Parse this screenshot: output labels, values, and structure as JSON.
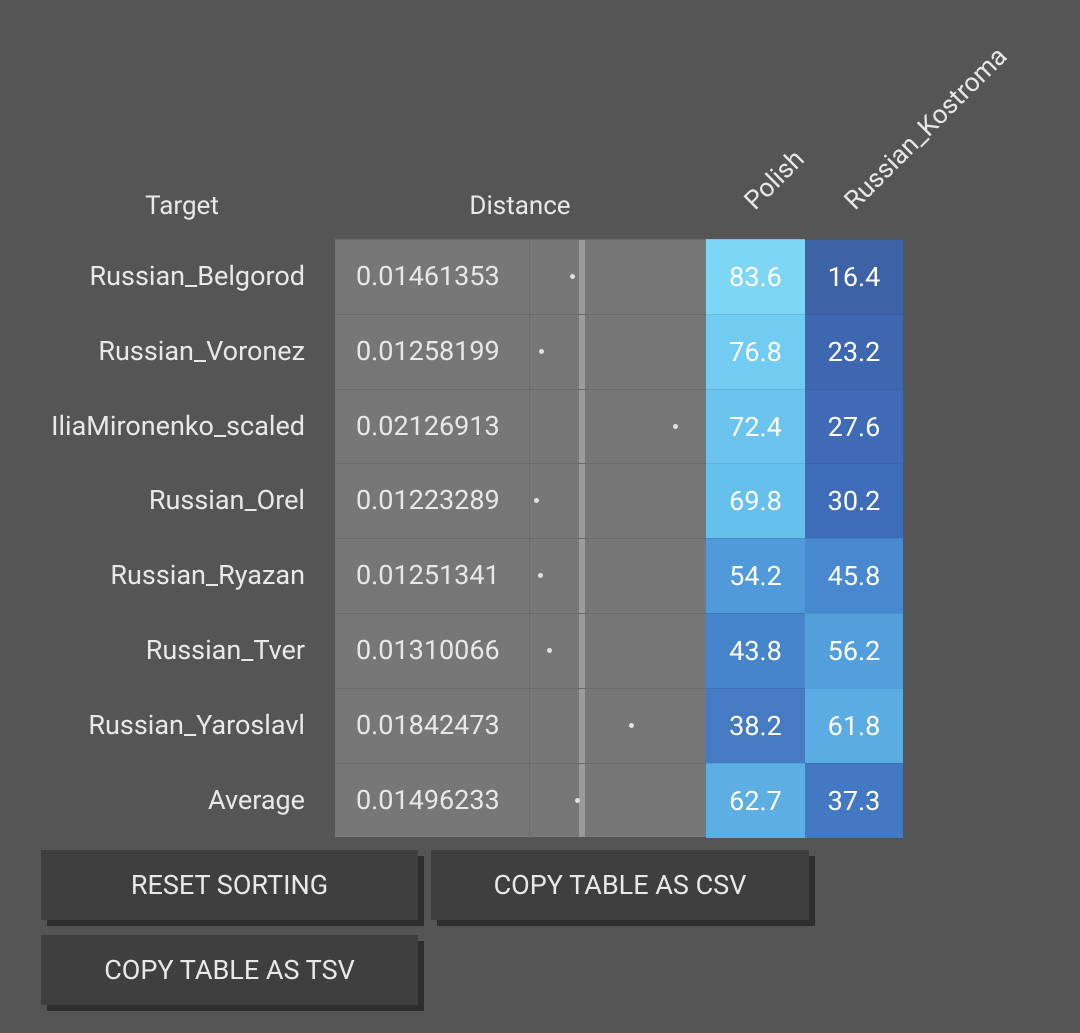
{
  "table": {
    "headers": [
      "Target",
      "Distance",
      "Polish",
      "Russian_Kostroma"
    ],
    "rows": [
      [
        "Russian_Belgorod",
        0.01461353,
        83.6,
        16.4
      ],
      [
        "Russian_Voronez",
        0.01258199,
        76.8,
        23.2
      ],
      [
        "IliaMironenko_scaled",
        0.02126913,
        72.4,
        27.6
      ],
      [
        "Russian_Orel",
        0.01223289,
        69.8,
        30.2
      ],
      [
        "Russian_Ryazan",
        0.01251341,
        54.2,
        45.8
      ],
      [
        "Russian_Tver",
        0.01310066,
        43.8,
        56.2
      ],
      [
        "Russian_Yaroslavl",
        0.01842473,
        38.2,
        61.8
      ],
      [
        "Average",
        0.01496233,
        62.7,
        37.3
      ]
    ]
  },
  "buttons": [
    "RESET SORTING",
    "COPY TABLE AS CSV",
    "COPY TABLE AS TSV"
  ]
}
